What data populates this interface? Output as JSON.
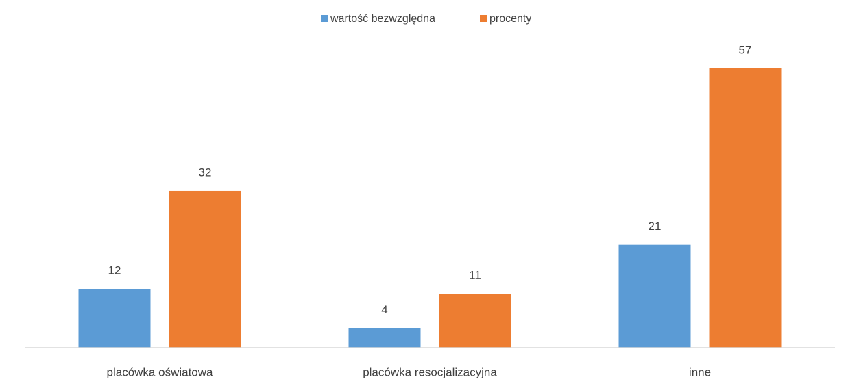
{
  "chart_data": {
    "type": "bar",
    "categories": [
      "placówka oświatowa",
      "placówka resocjalizacyjna",
      "inne"
    ],
    "series": [
      {
        "name": "wartość bezwzględna",
        "color": "#5b9bd5",
        "values": [
          12,
          4,
          21
        ]
      },
      {
        "name": "procenty",
        "color": "#ed7d31",
        "values": [
          32,
          11,
          57
        ]
      }
    ],
    "legend": "top",
    "grid": false,
    "data_labels": true
  }
}
